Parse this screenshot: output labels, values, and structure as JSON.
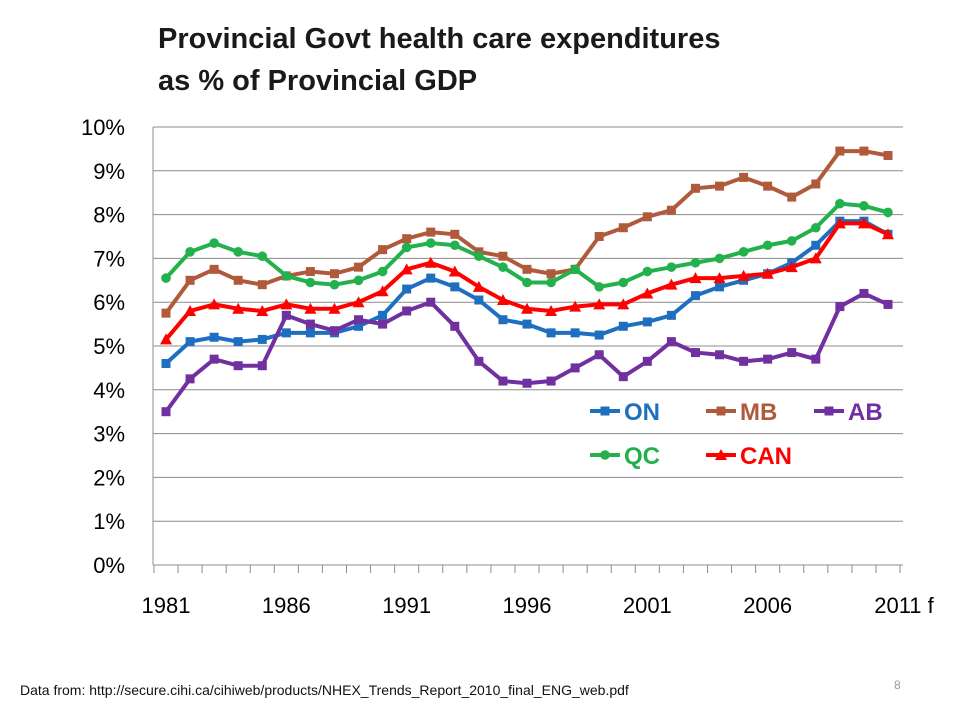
{
  "slide": {
    "source_note": "Data from: http://secure.cihi.ca/cihiweb/products/NHEX_Trends_Report_2010_final_ENG_web.pdf",
    "page_number": "8"
  },
  "chart_data": {
    "type": "line",
    "title_line1": "Provincial Govt health care expenditures",
    "title_line2": "as % of Provincial GDP",
    "xlabel": "",
    "ylabel": "",
    "ylim": [
      0,
      10
    ],
    "yticks": [
      "0%",
      "1%",
      "2%",
      "3%",
      "4%",
      "5%",
      "6%",
      "7%",
      "8%",
      "9%",
      "10%"
    ],
    "x": [
      1981,
      1982,
      1983,
      1984,
      1985,
      1986,
      1987,
      1988,
      1989,
      1990,
      1991,
      1992,
      1993,
      1994,
      1995,
      1996,
      1997,
      1998,
      1999,
      2000,
      2001,
      2002,
      2003,
      2004,
      2005,
      2006,
      2007,
      2008,
      2009,
      2010,
      2011
    ],
    "xtick_labels": [
      "1981",
      "1986",
      "1991",
      "1996",
      "2001",
      "2006",
      "2011 f"
    ],
    "xtick_values": [
      1981,
      1986,
      1991,
      1996,
      2001,
      2006,
      2011
    ],
    "grid": "horizontal",
    "legend_position": "lower-right inside plot",
    "series": [
      {
        "name": "ON",
        "color": "#1f6fc0",
        "marker": "square",
        "values": [
          4.6,
          5.1,
          5.2,
          5.1,
          5.15,
          5.3,
          5.3,
          5.3,
          5.45,
          5.7,
          6.3,
          6.55,
          6.35,
          6.05,
          5.6,
          5.5,
          5.3,
          5.3,
          5.25,
          5.45,
          5.55,
          5.7,
          6.15,
          6.35,
          6.5,
          6.65,
          6.9,
          7.3,
          7.85,
          7.85,
          7.55
        ]
      },
      {
        "name": "MB",
        "color": "#b05a3c",
        "marker": "square",
        "values": [
          5.75,
          6.5,
          6.75,
          6.5,
          6.4,
          6.6,
          6.7,
          6.65,
          6.8,
          7.2,
          7.45,
          7.6,
          7.55,
          7.15,
          7.05,
          6.75,
          6.65,
          6.75,
          7.5,
          7.7,
          7.95,
          8.1,
          8.6,
          8.65,
          8.85,
          8.65,
          8.4,
          8.7,
          9.45,
          9.45,
          9.35
        ]
      },
      {
        "name": "AB",
        "color": "#7030a0",
        "marker": "square",
        "values": [
          3.5,
          4.25,
          4.7,
          4.55,
          4.55,
          5.7,
          5.5,
          5.35,
          5.6,
          5.5,
          5.8,
          6.0,
          5.45,
          4.65,
          4.2,
          4.15,
          4.2,
          4.5,
          4.8,
          4.3,
          4.65,
          5.1,
          4.85,
          4.8,
          4.65,
          4.7,
          4.85,
          4.7,
          5.9,
          6.2,
          5.95
        ]
      },
      {
        "name": "QC",
        "color": "#22b14c",
        "marker": "circle",
        "values": [
          6.55,
          7.15,
          7.35,
          7.15,
          7.05,
          6.6,
          6.45,
          6.4,
          6.5,
          6.7,
          7.25,
          7.35,
          7.3,
          7.05,
          6.8,
          6.45,
          6.45,
          6.75,
          6.35,
          6.45,
          6.7,
          6.8,
          6.9,
          7.0,
          7.15,
          7.3,
          7.4,
          7.7,
          8.25,
          8.2,
          8.05
        ]
      },
      {
        "name": "CAN",
        "color": "#ff0000",
        "marker": "triangle",
        "values": [
          5.15,
          5.8,
          5.95,
          5.85,
          5.8,
          5.95,
          5.85,
          5.85,
          6.0,
          6.25,
          6.75,
          6.9,
          6.7,
          6.35,
          6.05,
          5.85,
          5.8,
          5.9,
          5.95,
          5.95,
          6.2,
          6.4,
          6.55,
          6.55,
          6.6,
          6.65,
          6.8,
          7.0,
          7.8,
          7.8,
          7.55
        ]
      }
    ]
  }
}
